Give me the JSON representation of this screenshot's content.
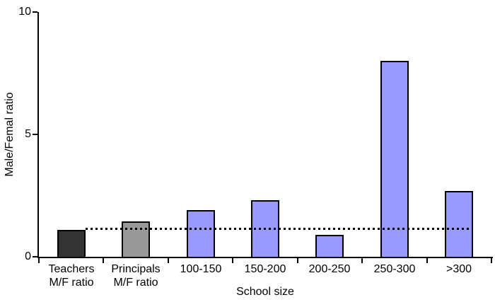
{
  "chart_data": {
    "type": "bar",
    "title": "",
    "xlabel": "School size",
    "ylabel": "Male/Femal ratio",
    "ylim": [
      0,
      10
    ],
    "yticks": [
      0,
      5,
      10
    ],
    "grid": false,
    "legend": null,
    "background_color": "#ffffff",
    "axis_color": "#000000",
    "text_color": "#000000",
    "categories": [
      [
        "Teachers",
        "M/F ratio"
      ],
      [
        "Principals",
        "M/F ratio"
      ],
      [
        "100-150"
      ],
      [
        "150-200"
      ],
      [
        "200-250"
      ],
      [
        "250-300"
      ],
      [
        ">300"
      ]
    ],
    "values": [
      1.1,
      1.45,
      1.9,
      2.3,
      0.9,
      8.0,
      2.7
    ],
    "bar_colors": [
      "#333333",
      "#999999",
      "#9999ff",
      "#9999ff",
      "#9999ff",
      "#9999ff",
      "#9999ff"
    ],
    "bar_border_color": "#000000",
    "reference_line": {
      "value": 1.1,
      "color": "#000000",
      "style": "dotted",
      "from_category_index": 0,
      "to_category_index": 6
    }
  }
}
